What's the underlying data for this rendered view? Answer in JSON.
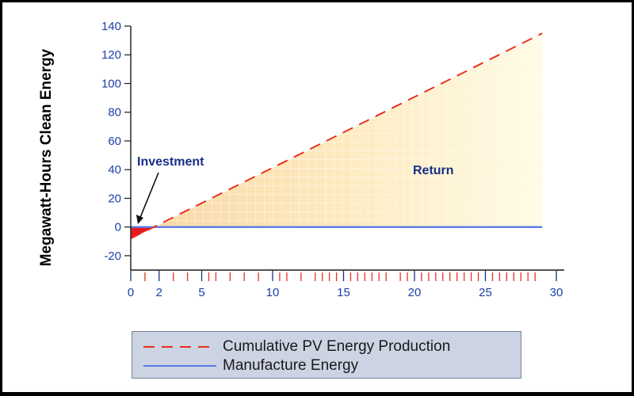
{
  "chart_data": {
    "type": "line",
    "ylabel": "Megawatt-Hours Clean Energy",
    "xlim": [
      0,
      30
    ],
    "ylim": [
      -30,
      140
    ],
    "x_ticks": [
      0,
      2,
      5,
      10,
      15,
      20,
      25,
      30
    ],
    "y_ticks": [
      -20,
      0,
      20,
      40,
      60,
      80,
      100,
      120,
      140
    ],
    "minor_x_ticks": [
      1,
      3,
      4,
      5.5,
      6,
      7,
      8,
      9,
      10.5,
      11,
      12,
      13,
      13.5,
      14,
      14.5,
      15.5,
      16,
      16.5,
      17,
      17.5,
      18,
      19,
      19.5,
      20.5,
      21,
      21.5,
      22,
      22.5,
      23,
      23.5,
      24,
      24.5,
      25.5,
      26,
      26.5,
      27,
      27.5,
      28,
      28.5
    ],
    "series": [
      {
        "name": "Cumulative PV Energy Production",
        "color": "#e8321e",
        "style": "dashed",
        "x": [
          0,
          1.7,
          29
        ],
        "y": [
          -8,
          0,
          135
        ]
      },
      {
        "name": "Manufacture Energy",
        "color": "#5a78e6",
        "style": "solid",
        "x": [
          0,
          29
        ],
        "y": [
          0,
          0
        ]
      }
    ],
    "annotations": [
      {
        "text": "Investment",
        "arrow_to_x": 0.5,
        "arrow_to_y": 2
      },
      {
        "text": "Return"
      }
    ],
    "legend_position": "bottom",
    "colors": {
      "investment_fill": "#e8191e",
      "return_fill": "#fff3c8",
      "axis": "#1a1a1a",
      "tick_text": "#1d3fa6"
    }
  }
}
